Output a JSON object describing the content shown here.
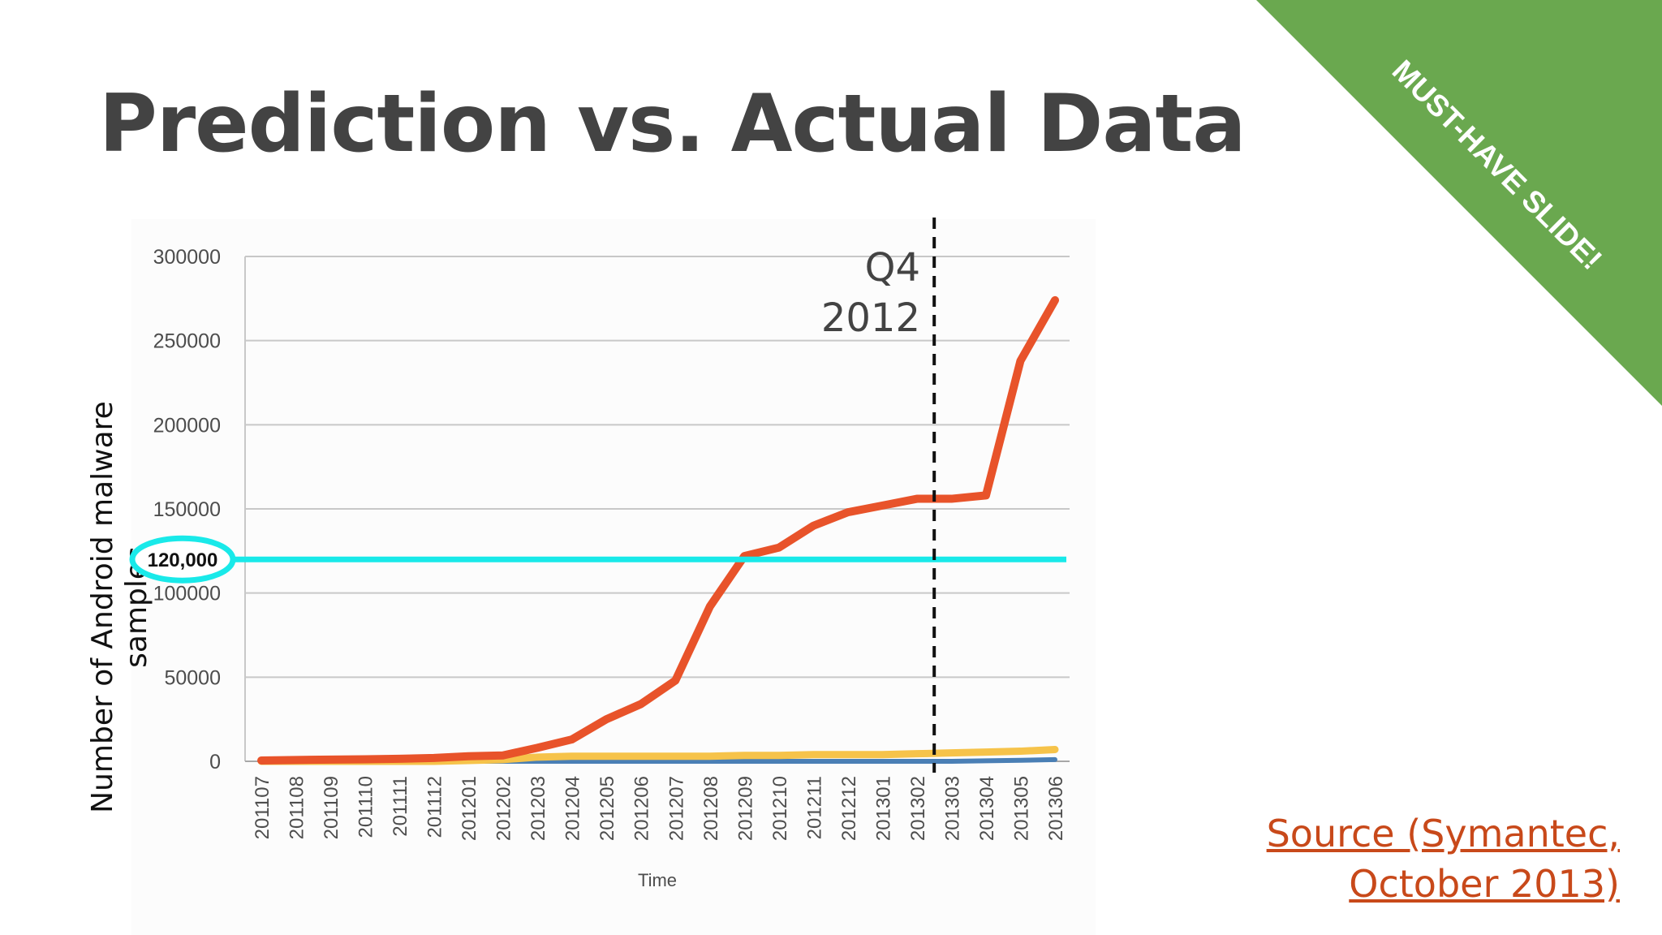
{
  "slide": {
    "title": "Prediction vs. Actual Data",
    "corner_banner": "MUST-HAVE SLIDE!",
    "source_link": {
      "line1": "Source (Symantec,",
      "line2": "October 2013)"
    }
  },
  "colors": {
    "title": "#434343",
    "banner": "#6aa84f",
    "actual_series": "#e8532a",
    "second_series": "#f6c34a",
    "third_series": "#4a7fb5",
    "prediction_line": "#19e9e9",
    "source_link": "#c8491a"
  },
  "chart_data": {
    "type": "line",
    "xlabel": "Time",
    "ylabel": "Number of Android malware samples",
    "ylim": [
      0,
      300000
    ],
    "yticks": [
      "0",
      "50000",
      "100000",
      "150000",
      "200000",
      "250000",
      "300000"
    ],
    "grid": true,
    "categories": [
      "201107",
      "201108",
      "201109",
      "201110",
      "201111",
      "201112",
      "201201",
      "201202",
      "201203",
      "201204",
      "201205",
      "201206",
      "201207",
      "201208",
      "201209",
      "201210",
      "201211",
      "201212",
      "201301",
      "201302",
      "201303",
      "201304",
      "201305",
      "201306"
    ],
    "series": [
      {
        "values": [
          500,
          800,
          1000,
          1200,
          1500,
          2000,
          3000,
          3500,
          8000,
          13000,
          25000,
          34000,
          48000,
          92000,
          122000,
          127000,
          140000,
          148000,
          152000,
          156000,
          156000,
          158000,
          238000,
          274000
        ]
      },
      {
        "values": [
          0,
          0,
          0,
          0,
          0,
          0,
          500,
          1000,
          2500,
          3000,
          3000,
          3000,
          3000,
          3000,
          3500,
          3500,
          4000,
          4000,
          4000,
          4500,
          5000,
          5500,
          6000,
          7000
        ]
      },
      {
        "values": [
          0,
          0,
          0,
          0,
          0,
          0,
          0,
          0,
          0,
          0,
          0,
          0,
          0,
          0,
          0,
          0,
          0,
          0,
          0,
          0,
          0,
          300,
          600,
          1000
        ]
      }
    ],
    "prediction": {
      "value": 120000,
      "label": "120,000"
    },
    "marker": {
      "after_category": "201302",
      "label_line1": "Q4",
      "label_line2": "2012"
    }
  }
}
